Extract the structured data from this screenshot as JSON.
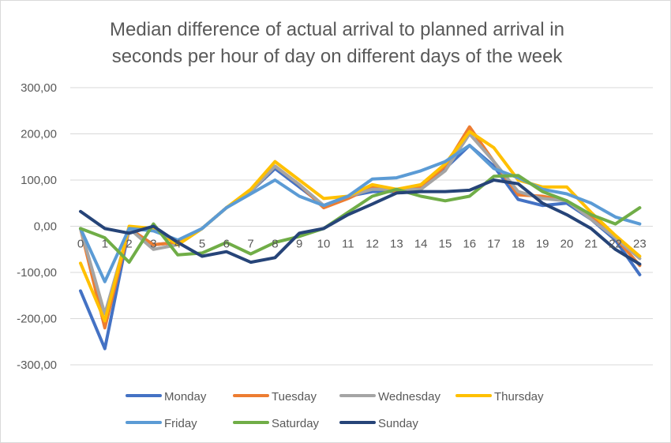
{
  "chart_data": {
    "type": "line",
    "title_lines": [
      "Median difference of actual arrival to planned arrival in",
      "seconds per hour of day on different days of the week"
    ],
    "xlabel": "",
    "ylabel": "",
    "ylim": [
      -300,
      300
    ],
    "y_ticks": [
      300,
      200,
      100,
      0,
      -100,
      -200,
      -300
    ],
    "y_tick_labels": [
      "300,00",
      "200,00",
      "100,00",
      "0,00",
      "-100,00",
      "-200,00",
      "-300,00"
    ],
    "x": [
      0,
      1,
      2,
      3,
      4,
      5,
      6,
      7,
      8,
      9,
      10,
      11,
      12,
      13,
      14,
      15,
      16,
      17,
      18,
      19,
      20,
      21,
      22,
      23
    ],
    "x_tick_labels": [
      "0",
      "1",
      "2",
      "3",
      "4",
      "5",
      "6",
      "7",
      "8",
      "9",
      "10",
      "11",
      "12",
      "13",
      "14",
      "15",
      "16",
      "17",
      "18",
      "19",
      "20",
      "21",
      "22",
      "23"
    ],
    "grid": true,
    "legend_placement": "bottom",
    "series": [
      {
        "name": "Monday",
        "color": "#4472C4",
        "values": [
          -140,
          -265,
          -5,
          -40,
          -35,
          -5,
          40,
          75,
          125,
          85,
          45,
          65,
          75,
          75,
          80,
          125,
          175,
          130,
          58,
          45,
          50,
          15,
          -30,
          -105
        ]
      },
      {
        "name": "Tuesday",
        "color": "#ED7D31",
        "values": [
          -5,
          -220,
          -5,
          -40,
          -35,
          -5,
          40,
          75,
          130,
          90,
          40,
          60,
          85,
          75,
          85,
          130,
          215,
          140,
          68,
          65,
          55,
          20,
          -25,
          -85
        ]
      },
      {
        "name": "Wednesday",
        "color": "#A5A5A5",
        "values": [
          -5,
          -190,
          -5,
          -50,
          -40,
          -5,
          40,
          75,
          130,
          90,
          45,
          65,
          80,
          80,
          80,
          120,
          200,
          140,
          75,
          60,
          55,
          15,
          -25,
          -70
        ]
      },
      {
        "name": "Thursday",
        "color": "#FFC000",
        "values": [
          -80,
          -205,
          0,
          -5,
          -40,
          -5,
          40,
          80,
          140,
          100,
          60,
          65,
          90,
          80,
          90,
          135,
          205,
          170,
          100,
          85,
          85,
          30,
          -20,
          -65
        ]
      },
      {
        "name": "Friday",
        "color": "#5B9BD5",
        "values": [
          -5,
          -120,
          -5,
          -10,
          -30,
          -5,
          40,
          70,
          100,
          65,
          45,
          65,
          102,
          105,
          120,
          140,
          175,
          125,
          105,
          80,
          70,
          50,
          20,
          5
        ]
      },
      {
        "name": "Saturday",
        "color": "#70AD47",
        "values": [
          -5,
          -25,
          -78,
          5,
          -62,
          -58,
          -35,
          -60,
          -35,
          -22,
          -5,
          30,
          65,
          80,
          65,
          55,
          65,
          108,
          110,
          75,
          55,
          25,
          5,
          40
        ]
      },
      {
        "name": "Sunday",
        "color": "#264478",
        "values": [
          32,
          -5,
          -15,
          0,
          -35,
          -65,
          -55,
          -78,
          -68,
          -15,
          -5,
          25,
          48,
          72,
          75,
          75,
          78,
          100,
          92,
          50,
          25,
          -5,
          -50,
          -82
        ]
      }
    ]
  }
}
